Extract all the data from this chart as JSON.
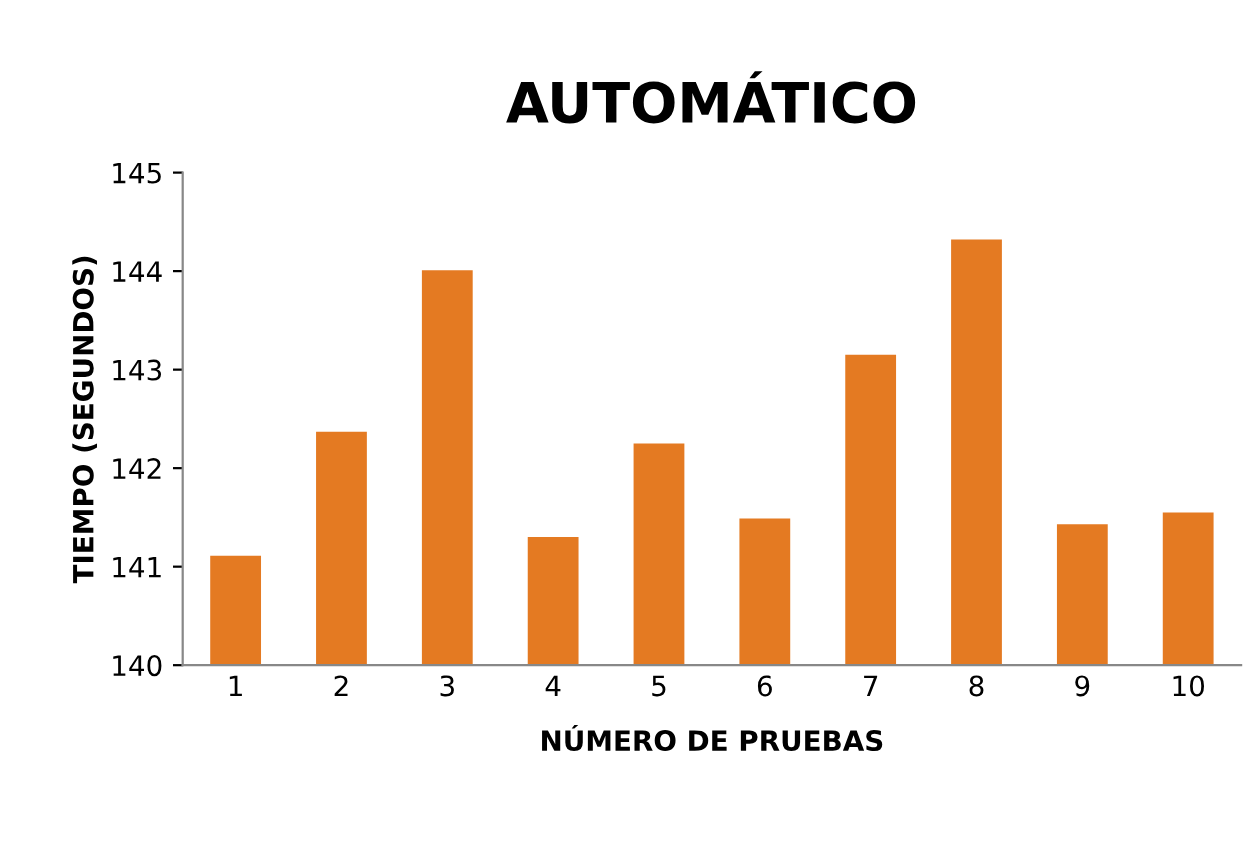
{
  "chart_data": {
    "type": "bar",
    "title": "AUTOMÁTICO",
    "xlabel": "NÚMERO DE PRUEBAS",
    "ylabel": "TIEMPO (SEGUNDOS)",
    "categories": [
      "1",
      "2",
      "3",
      "4",
      "5",
      "6",
      "7",
      "8",
      "9",
      "10"
    ],
    "values": [
      141.11,
      142.37,
      144.01,
      141.3,
      142.25,
      141.49,
      143.15,
      144.32,
      141.43,
      141.55
    ],
    "color": "#e47a22",
    "ylim": [
      140,
      145
    ],
    "yticks": [
      140,
      141,
      142,
      143,
      144,
      145
    ],
    "grid": false,
    "legend": false
  }
}
